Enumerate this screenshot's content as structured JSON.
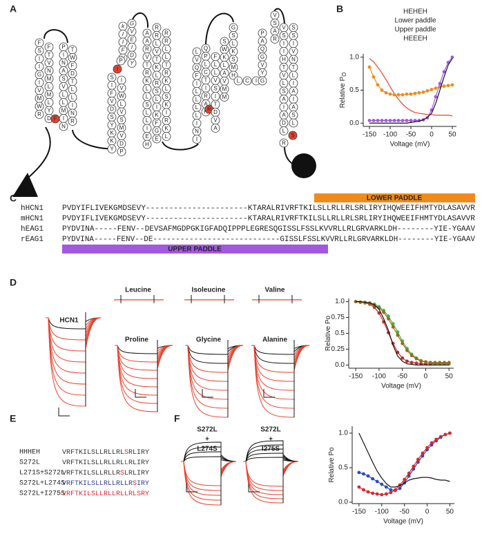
{
  "panels": {
    "a": "A",
    "b": "B",
    "c": "C",
    "d": "D",
    "e": "E",
    "f": "F"
  },
  "diagram": {
    "segments": [
      {
        "residues": "FSIIGIVMWR"
      },
      {
        "residues": "FTVNMLMLYD"
      },
      {
        "residues": "F",
        "color": "#e8412c"
      },
      {
        "residues": "PINASVLLMIN"
      },
      {
        "residues": "TWFDTLLINR"
      },
      {
        "residues": "kIIFV",
        "italic": true
      },
      {
        "residues": "GVEIDY",
        "italic": true
      },
      {
        "residues": "P"
      },
      {
        "residues": "I",
        "color": "#e8412c"
      },
      {
        "residues": "SIFVDSYKKY"
      },
      {
        "residues": "IVWLVSMVDP"
      },
      {
        "residues": "AARVTRKLLSLLIEH"
      },
      {
        "residues": "RRLVTKLRSLIKFGE"
      },
      {
        "residues": "RRLLTRKLSKIRKL"
      },
      {
        "residues": "LVQFILLLLINI"
      },
      {
        "residues": "QPLCTIRAH"
      },
      {
        "residues": "R",
        "color": "#e8412c"
      },
      {
        "residues": "FLLVSITDVA"
      },
      {
        "residues": "SWKLAVMM"
      },
      {
        "residues": "GSLKSMH"
      },
      {
        "residues": "LCI"
      },
      {
        "residues": "PAQGVYG"
      },
      {
        "residues": "VSAR"
      },
      {
        "residues": "VSIIHTVLSAIADL"
      },
      {
        "residues": "SSIVNTLIAIASL"
      },
      {
        "residues": "S",
        "color": "#e8412c"
      },
      {
        "residues": "R"
      }
    ]
  },
  "alignment": {
    "lower": "LOWER PADDLE",
    "upper": "UPPER PADDLE",
    "lower_color": "#f08a1c",
    "upper_color": "#a259e0",
    "rows": [
      {
        "name": "hHCN1",
        "seq": "PVDYIFLIVEKGMDSEVY----------------------KTARALRIVRFTKILSLLRLLRLSRLIRYIHQWEEIFHMTYDLASAVVR"
      },
      {
        "name": "mHCN1",
        "seq": "PVDYIFLIVEKGMDSEVY----------------------KTARALRIVRFTKILSLLRLLRLSRLIRYIHQWEEIFHMTYDLASAVVR"
      },
      {
        "name": "hEAG1",
        "seq": "PYDVINA-----FENV--DEVSAFMGDPGKIGFADQIPPPLEGRESQGISSLFSSLKVVRLLRLGRVARKLDH--------YIE-YGAAV"
      },
      {
        "name": "rEAG1",
        "seq": "PYDVINA-----FENV--DE----------------------------GISSLFSSLKVVRLLRLGRVARKLDH--------YIE-YGAAV"
      }
    ]
  },
  "traces": {
    "hcn1": "HCN1",
    "leucine": "Leucine",
    "isoleucine": "Isoleucine",
    "valine": "Valine",
    "proline": {
      "text": "Proline",
      "color": "#3cb83c"
    },
    "glycine": {
      "text": "Glycine",
      "color": "#b8741c"
    },
    "alanine": {
      "text": "Alanine",
      "color": "#e8412c"
    },
    "f1": {
      "lines": [
        "S272L",
        "+",
        "L274S"
      ],
      "color": "#2d3a8c"
    },
    "f2": {
      "lines": [
        "S272L",
        "+",
        "I275S"
      ],
      "color": "#e0242c"
    }
  },
  "table": {
    "rows": [
      {
        "name": "HHHEH",
        "parts": [
          "VRFTKILSLLRLLRL",
          "S",
          "RLIRY"
        ],
        "color": "#333333"
      },
      {
        "name": "S272L",
        "parts": [
          "VRFTKILSLLRLLRL",
          "L",
          "RLIRY"
        ],
        "color": "#333333"
      },
      {
        "name": "L271S+S272L",
        "parts": [
          "VRFTKILSLLRLLR",
          "S",
          "LRLIRY"
        ],
        "color": "#333333"
      },
      {
        "name": "S272L+L274S",
        "parts": [
          "VRFTKILSLLRLLRLLR",
          "S",
          "IRY"
        ],
        "color": "#2d3a8c"
      },
      {
        "name": "S272L+I275S",
        "parts": [
          "VRFTKILSLLRLLRLLRL",
          "S",
          "RY"
        ],
        "color": "#e0242c"
      }
    ]
  },
  "chart_data": [
    {
      "type": "line",
      "xlabel": "Voltage (mV)",
      "ylabel": {
        "main": "Relative P",
        "sub": "O"
      },
      "xlim": [
        -165,
        60
      ],
      "ylim": [
        -0.05,
        1.05
      ],
      "xticks": [
        -150,
        -100,
        -50,
        0,
        50
      ],
      "yticks": [
        {
          "value": 0,
          "label": "0.0"
        },
        {
          "value": 0.5,
          "label": "0.5"
        },
        {
          "value": 1,
          "label": "1.0"
        }
      ],
      "legend": "top",
      "x": [
        -150,
        -140,
        -130,
        -120,
        -110,
        -100,
        -90,
        -80,
        -70,
        -60,
        -50,
        -40,
        -30,
        -20,
        -10,
        0,
        10,
        20,
        30,
        40,
        50
      ],
      "series": [
        {
          "name": "HEHEH",
          "color": "#e8412c",
          "style": "line",
          "values": [
            0.98,
            0.93,
            0.85,
            0.76,
            0.66,
            0.55,
            0.45,
            0.36,
            0.29,
            0.23,
            0.19,
            0.16,
            0.15,
            0.14,
            0.13,
            0.13,
            0.12,
            0.12,
            0.12,
            0.12,
            0.11
          ]
        },
        {
          "name": "Lower paddle",
          "color": "#f08a1c",
          "style": "line-markers",
          "values": [
            0.85,
            0.7,
            0.58,
            0.5,
            0.46,
            0.44,
            0.43,
            0.43,
            0.43,
            0.44,
            0.44,
            0.45,
            0.46,
            0.47,
            0.49,
            0.51,
            0.53,
            0.55,
            0.56,
            0.57,
            0.58
          ]
        },
        {
          "name": "Upper paddle",
          "color": "#a259e0",
          "style": "line-markers",
          "values": [
            0.04,
            0.04,
            0.04,
            0.04,
            0.04,
            0.04,
            0.04,
            0.04,
            0.04,
            0.04,
            0.04,
            0.04,
            0.04,
            0.05,
            0.08,
            0.2,
            0.4,
            0.6,
            0.78,
            0.92,
            1.0
          ]
        },
        {
          "name": "HEEEH",
          "color": "#111111",
          "style": "line",
          "values": [
            0,
            0,
            0,
            0,
            0,
            0,
            0,
            0,
            0,
            0,
            0.01,
            0.02,
            0.03,
            0.05,
            0.09,
            0.15,
            0.3,
            0.5,
            0.7,
            0.88,
            0.98
          ]
        }
      ]
    },
    {
      "type": "line",
      "xlabel": "Voltage (mV)",
      "ylabel": {
        "main": "Relative Po"
      },
      "xlim": [
        -165,
        60
      ],
      "ylim": [
        -0.05,
        1.05
      ],
      "xticks": [
        -150,
        -100,
        -50,
        0,
        50
      ],
      "yticks": [
        {
          "value": 0,
          "label": "0.0"
        },
        0.25,
        0.5,
        0.75,
        {
          "value": 1,
          "label": "1.0"
        }
      ],
      "x": [
        -150,
        -140,
        -130,
        -120,
        -110,
        -100,
        -90,
        -80,
        -70,
        -60,
        -50,
        -40,
        -30,
        -20,
        -10,
        0,
        10,
        20,
        30,
        40,
        50
      ],
      "series": [
        {
          "color": "#c0282c",
          "style": "line-markers",
          "values": [
            1.0,
            0.99,
            0.98,
            0.96,
            0.91,
            0.82,
            0.68,
            0.51,
            0.34,
            0.2,
            0.11,
            0.06,
            0.04,
            0.03,
            0.02,
            0.02,
            0.02,
            0.02,
            0.02,
            0.02,
            0.02
          ]
        },
        {
          "color": "#3cb83c",
          "style": "line-markers",
          "values": [
            1.0,
            0.99,
            0.99,
            0.98,
            0.96,
            0.92,
            0.86,
            0.77,
            0.65,
            0.52,
            0.38,
            0.26,
            0.17,
            0.11,
            0.07,
            0.05,
            0.04,
            0.03,
            0.03,
            0.03,
            0.03
          ]
        },
        {
          "color": "#a0641c",
          "style": "line-markers",
          "values": [
            1.0,
            0.99,
            0.98,
            0.97,
            0.94,
            0.9,
            0.83,
            0.73,
            0.6,
            0.47,
            0.34,
            0.23,
            0.15,
            0.1,
            0.06,
            0.05,
            0.04,
            0.04,
            0.04,
            0.04,
            0.04
          ]
        },
        {
          "color": "#111111",
          "style": "line",
          "values": [
            1.0,
            1.0,
            0.99,
            0.98,
            0.95,
            0.88,
            0.73,
            0.55,
            0.31,
            0.14,
            0.06,
            0.02,
            0.01,
            0,
            0,
            0,
            0,
            0,
            0,
            0,
            0
          ]
        }
      ]
    },
    {
      "type": "line",
      "xlabel": "Voltage (mV)",
      "ylabel": {
        "main": "Relative Po"
      },
      "xlim": [
        -165,
        60
      ],
      "ylim": [
        -0.02,
        1.1
      ],
      "xticks": [
        -150,
        -100,
        -50,
        0,
        50
      ],
      "yticks": [
        {
          "value": 0,
          "label": "0.0"
        },
        {
          "value": 0.5,
          "label": "0.5"
        },
        {
          "value": 1,
          "label": "1.0"
        }
      ],
      "x": [
        -150,
        -140,
        -130,
        -120,
        -110,
        -100,
        -90,
        -80,
        -70,
        -60,
        -50,
        -40,
        -30,
        -20,
        -10,
        0,
        10,
        20,
        30,
        40,
        50
      ],
      "series": [
        {
          "color": "#2d4ac0",
          "style": "line-markers",
          "values": [
            0.43,
            0.41,
            0.38,
            0.34,
            0.3,
            0.26,
            0.22,
            0.18,
            0.17,
            0.2,
            0.28,
            0.38,
            0.48,
            0.58,
            0.67,
            0.76,
            0.83,
            0.89,
            0.94,
            0.98,
            1.0
          ]
        },
        {
          "color": "#e0242c",
          "style": "line-markers",
          "values": [
            0.22,
            0.18,
            0.15,
            0.13,
            0.12,
            0.11,
            0.12,
            0.14,
            0.18,
            0.25,
            0.33,
            0.42,
            0.52,
            0.62,
            0.71,
            0.79,
            0.86,
            0.91,
            0.95,
            0.98,
            1.0
          ]
        },
        {
          "color": "#111111",
          "style": "line",
          "values": [
            1.0,
            0.86,
            0.72,
            0.58,
            0.45,
            0.35,
            0.27,
            0.22,
            0.22,
            0.24,
            0.28,
            0.32,
            0.34,
            0.35,
            0.36,
            0.36,
            0.35,
            0.33,
            0.32,
            0.32,
            0.3
          ]
        }
      ]
    }
  ]
}
